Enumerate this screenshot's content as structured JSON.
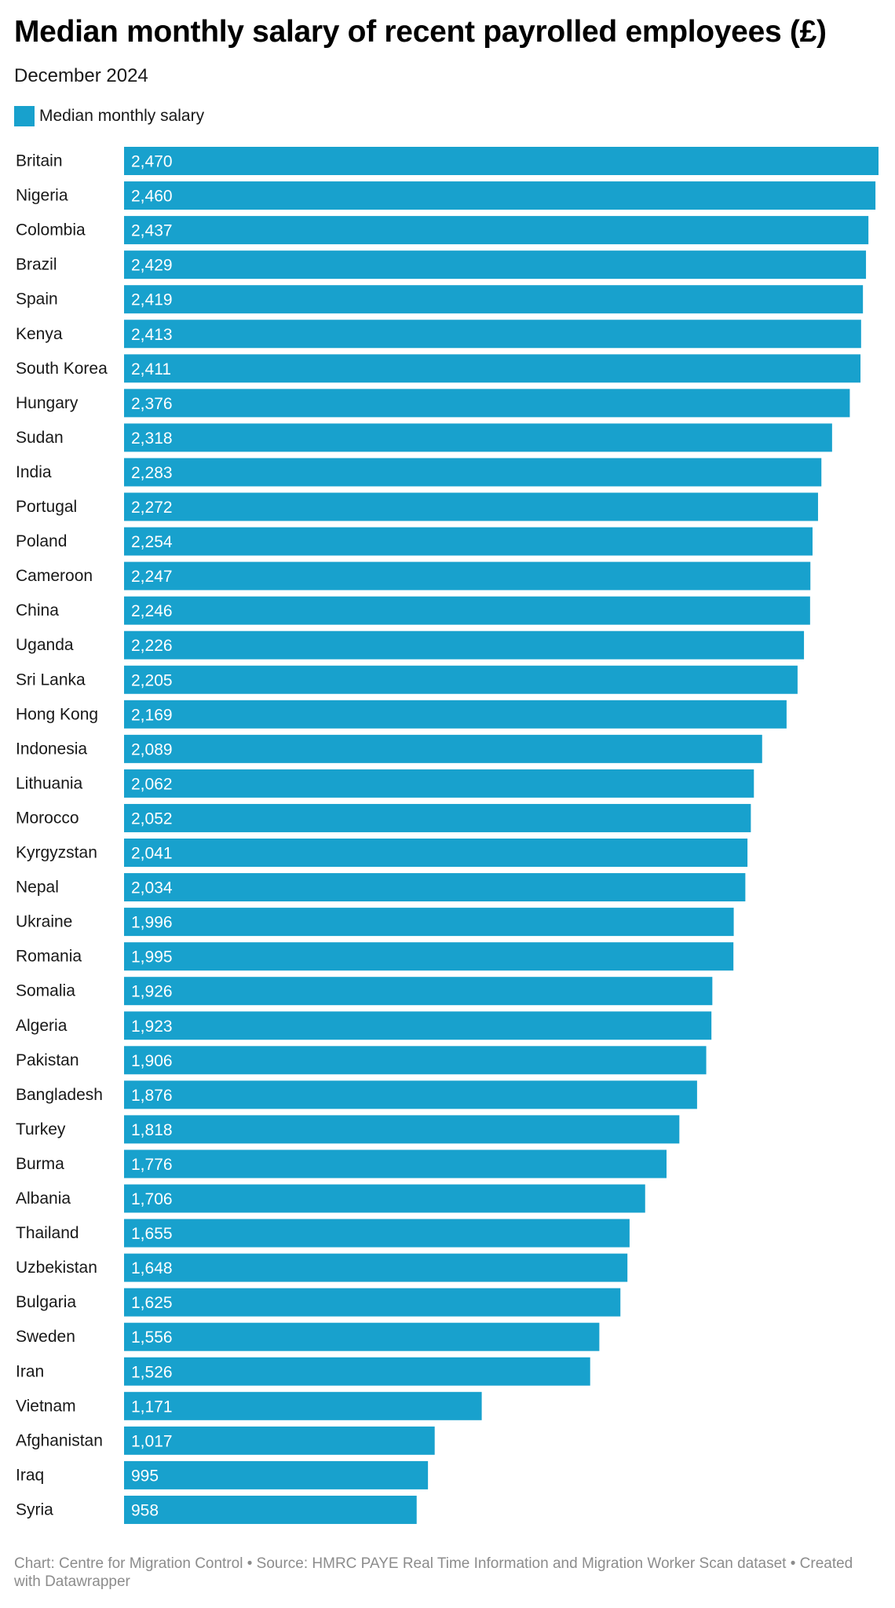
{
  "header": {
    "title": "Median monthly salary of recent payrolled employees (£)",
    "subtitle": "December 2024"
  },
  "legend": {
    "label": "Median monthly salary",
    "color": "#18a1cd"
  },
  "chart_data": {
    "type": "bar",
    "orientation": "horizontal",
    "title": "Median monthly salary of recent payrolled employees (£)",
    "subtitle": "December 2024",
    "xlabel": "",
    "ylabel": "",
    "xlim": [
      0,
      2470
    ],
    "series": [
      {
        "name": "Median monthly salary",
        "color": "#18a1cd",
        "values": [
          2470,
          2460,
          2437,
          2429,
          2419,
          2413,
          2411,
          2376,
          2318,
          2283,
          2272,
          2254,
          2247,
          2246,
          2226,
          2205,
          2169,
          2089,
          2062,
          2052,
          2041,
          2034,
          1996,
          1995,
          1926,
          1923,
          1906,
          1876,
          1818,
          1776,
          1706,
          1655,
          1648,
          1625,
          1556,
          1526,
          1171,
          1017,
          995,
          958
        ]
      }
    ],
    "categories": [
      "Britain",
      "Nigeria",
      "Colombia",
      "Brazil",
      "Spain",
      "Kenya",
      "South Korea",
      "Hungary",
      "Sudan",
      "India",
      "Portugal",
      "Poland",
      "Cameroon",
      "China",
      "Uganda",
      "Sri Lanka",
      "Hong Kong",
      "Indonesia",
      "Lithuania",
      "Morocco",
      "Kyrgyzstan",
      "Nepal",
      "Ukraine",
      "Romania",
      "Somalia",
      "Algeria",
      "Pakistan",
      "Bangladesh",
      "Turkey",
      "Burma",
      "Albania",
      "Thailand",
      "Uzbekistan",
      "Bulgaria",
      "Sweden",
      "Iran",
      "Vietnam",
      "Afghanistan",
      "Iraq",
      "Syria"
    ],
    "value_labels": [
      "2,470",
      "2,460",
      "2,437",
      "2,429",
      "2,419",
      "2,413",
      "2,411",
      "2,376",
      "2,318",
      "2,283",
      "2,272",
      "2,254",
      "2,247",
      "2,246",
      "2,226",
      "2,205",
      "2,169",
      "2,089",
      "2,062",
      "2,052",
      "2,041",
      "2,034",
      "1,996",
      "1,995",
      "1,926",
      "1,923",
      "1,906",
      "1,876",
      "1,818",
      "1,776",
      "1,706",
      "1,655",
      "1,648",
      "1,625",
      "1,556",
      "1,526",
      "1,171",
      "1,017",
      "995",
      "958"
    ]
  },
  "footer": {
    "text": "Chart: Centre for Migration Control • Source: HMRC PAYE Real Time Information and Migration Worker Scan dataset • Created with Datawrapper"
  }
}
